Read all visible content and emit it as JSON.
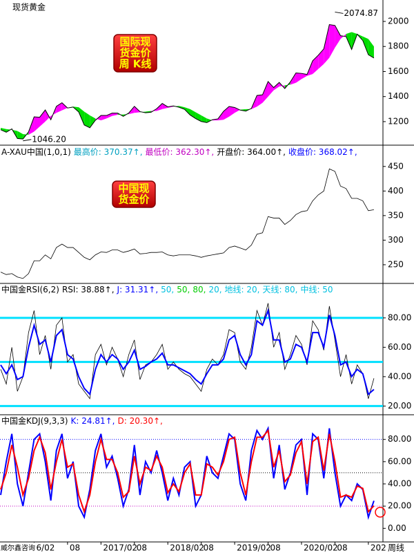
{
  "chart_data": [
    {
      "type": "line",
      "title": "现货黄金",
      "ylim": [
        1023,
        2127
      ],
      "yticks": [
        1200,
        1400,
        1600,
        1800,
        2000
      ],
      "series": [
        {
          "color": "#000000",
          "values": [
            1135,
            1115,
            1142,
            1065,
            1061,
            1118,
            1238,
            1235,
            1293,
            1215,
            1322,
            1351,
            1309,
            1316,
            1277,
            1173,
            1151,
            1211,
            1249,
            1249,
            1268,
            1268,
            1242,
            1269,
            1322,
            1280,
            1271,
            1275,
            1303,
            1345,
            1318,
            1325,
            1315,
            1298,
            1253,
            1224,
            1201,
            1192,
            1215,
            1222,
            1282,
            1321,
            1313,
            1292,
            1284,
            1305,
            1409,
            1414,
            1520,
            1472,
            1513,
            1464,
            1517,
            1589,
            1585,
            1577,
            1686,
            1730,
            1781,
            1975,
            1968,
            1886,
            1879,
            1776,
            1898,
            1847,
            1734,
            1708
          ]
        },
        {
          "color": "#ff00ff",
          "values": [
            1150,
            1140,
            1135,
            1125,
            1100,
            1095,
            1120,
            1160,
            1200,
            1245,
            1270,
            1290,
            1310,
            1320,
            1315,
            1280,
            1250,
            1225,
            1210,
            1225,
            1245,
            1255,
            1257,
            1260,
            1270,
            1275,
            1280,
            1285,
            1285,
            1300,
            1310,
            1320,
            1325,
            1315,
            1300,
            1275,
            1250,
            1225,
            1210,
            1210,
            1215,
            1240,
            1270,
            1295,
            1300,
            1300,
            1320,
            1350,
            1400,
            1450,
            1480,
            1490,
            1495,
            1510,
            1540,
            1565,
            1580,
            1620,
            1660,
            1710,
            1790,
            1860,
            1900,
            1915,
            1900,
            1880,
            1860,
            1800
          ]
        }
      ],
      "band": {
        "above": "#ff00ff",
        "below": "#00dd00"
      },
      "annotations": [
        {
          "label": "2074.87",
          "x": 60,
          "value": 2074.87
        },
        {
          "label": "1046.20",
          "x": 4,
          "value": 1046.2
        }
      ],
      "box": [
        "国际现",
        "货金价",
        "周 K线"
      ]
    },
    {
      "type": "line",
      "header": [
        {
          "text": "A-XAU中国(1,0,1)",
          "color": "#000000"
        },
        {
          "text": "最高价: 370.37↑,",
          "color": "#00a0c0"
        },
        {
          "text": "最低价: 362.30↑,",
          "color": "#c000c0"
        },
        {
          "text": "开盘价: 364.00↑,",
          "color": "#000000"
        },
        {
          "text": "收盘价: 368.02↑,",
          "color": "#0000ff"
        }
      ],
      "ylim": [
        219,
        468
      ],
      "yticks": [
        250,
        300,
        350,
        400,
        450
      ],
      "series": [
        {
          "color": "#000000",
          "values": [
            235,
            230,
            232,
            225,
            222,
            232,
            258,
            258,
            270,
            262,
            285,
            292,
            285,
            285,
            275,
            265,
            260,
            270,
            276,
            275,
            280,
            280,
            275,
            278,
            282,
            272,
            273,
            275,
            275,
            276,
            270,
            268,
            270,
            270,
            270,
            268,
            265,
            268,
            270,
            272,
            274,
            285,
            288,
            284,
            280,
            290,
            312,
            315,
            348,
            345,
            345,
            332,
            340,
            352,
            358,
            360,
            380,
            392,
            400,
            445,
            440,
            410,
            405,
            385,
            385,
            380,
            360,
            362
          ]
        }
      ],
      "box": [
        "中国现",
        "货金价"
      ]
    },
    {
      "type": "line",
      "header": [
        {
          "text": "中国金RSI(6,2)",
          "color": "#000000"
        },
        {
          "text": "RSI: 38.88↑,",
          "color": "#000000"
        },
        {
          "text": "J: 31.31↑,",
          "color": "#0000ff"
        },
        {
          "text": "50,",
          "color": "#00c0e0"
        },
        {
          "text": "50,",
          "color": "#00cc00"
        },
        {
          "text": "80,",
          "color": "#00cc00"
        },
        {
          "text": "20,",
          "color": "#00c0e0"
        },
        {
          "text": "地线: 20,",
          "color": "#00c0e0"
        },
        {
          "text": "天线: 80,",
          "color": "#00c0e0"
        },
        {
          "text": "中线: 50",
          "color": "#00c0e0"
        }
      ],
      "ylim": [
        15,
        95
      ],
      "yticks": [
        {
          "value": 20,
          "label": "20.00"
        },
        {
          "value": 40,
          "label": "40.00"
        },
        {
          "value": 60,
          "label": "60.00"
        },
        {
          "value": 80,
          "label": "80.00"
        }
      ],
      "ref_lines": [
        {
          "value": 80,
          "color": "#00e0ff"
        },
        {
          "value": 50,
          "color": "#00e0ff"
        },
        {
          "value": 20,
          "color": "#00e0ff"
        }
      ],
      "ref_style": "solid",
      "series": [
        {
          "color": "#000000",
          "values": [
            45,
            35,
            60,
            30,
            40,
            70,
            85,
            55,
            68,
            45,
            75,
            80,
            50,
            55,
            35,
            30,
            25,
            55,
            62,
            48,
            60,
            52,
            40,
            55,
            65,
            38,
            48,
            50,
            55,
            62,
            45,
            50,
            45,
            42,
            40,
            35,
            30,
            45,
            52,
            48,
            55,
            72,
            70,
            50,
            45,
            60,
            85,
            75,
            90,
            60,
            70,
            45,
            55,
            68,
            62,
            48,
            78,
            72,
            58,
            88,
            65,
            40,
            55,
            35,
            48,
            42,
            25,
            38.88
          ]
        },
        {
          "color": "#0000ff",
          "values": [
            48,
            42,
            48,
            38,
            40,
            60,
            75,
            62,
            65,
            50,
            68,
            72,
            55,
            52,
            40,
            32,
            28,
            45,
            55,
            50,
            55,
            52,
            45,
            50,
            58,
            45,
            47,
            50,
            52,
            56,
            48,
            48,
            46,
            44,
            42,
            38,
            35,
            42,
            48,
            48,
            52,
            65,
            68,
            55,
            48,
            55,
            78,
            75,
            85,
            65,
            65,
            50,
            52,
            62,
            60,
            50,
            70,
            70,
            60,
            82,
            68,
            48,
            50,
            40,
            45,
            42,
            28,
            31.31
          ]
        }
      ]
    },
    {
      "type": "line",
      "header": [
        {
          "text": "中国金KDJ(9,3,3)",
          "color": "#000000"
        },
        {
          "text": "K: 24.81↑,",
          "color": "#0000ff"
        },
        {
          "text": "D: 20.30↑,",
          "color": "#ff0000"
        }
      ],
      "ylim": [
        -11,
        91
      ],
      "yticks": [
        {
          "value": 0,
          "label": "0.00"
        },
        {
          "value": 20,
          "label": "20.00"
        },
        {
          "value": 40,
          "label": "40.00"
        },
        {
          "value": 60,
          "label": "60.00"
        },
        {
          "value": 80,
          "label": "80.00"
        }
      ],
      "ref_lines": [
        {
          "value": 80,
          "color": "#0000ff"
        },
        {
          "value": 50,
          "color": "#000000"
        },
        {
          "value": 20,
          "color": "#c000c0"
        }
      ],
      "ref_style": "dotted",
      "series": [
        {
          "color": "#0000ff",
          "values": [
            30,
            60,
            85,
            40,
            20,
            50,
            80,
            85,
            60,
            25,
            70,
            85,
            45,
            60,
            20,
            10,
            35,
            70,
            85,
            55,
            65,
            45,
            20,
            35,
            75,
            30,
            60,
            50,
            70,
            50,
            25,
            45,
            30,
            55,
            60,
            20,
            30,
            65,
            50,
            45,
            65,
            85,
            80,
            40,
            25,
            70,
            88,
            80,
            90,
            45,
            75,
            35,
            50,
            75,
            80,
            30,
            85,
            80,
            45,
            90,
            50,
            20,
            30,
            25,
            40,
            35,
            10,
            24.81
          ]
        },
        {
          "color": "#ff0000",
          "values": [
            35,
            50,
            75,
            55,
            30,
            45,
            70,
            82,
            68,
            35,
            60,
            80,
            55,
            58,
            30,
            15,
            30,
            60,
            80,
            62,
            62,
            50,
            28,
            33,
            65,
            40,
            55,
            52,
            65,
            55,
            32,
            40,
            33,
            50,
            58,
            30,
            30,
            58,
            55,
            48,
            60,
            80,
            82,
            50,
            30,
            60,
            82,
            82,
            88,
            55,
            70,
            42,
            48,
            68,
            78,
            40,
            78,
            82,
            52,
            85,
            60,
            28,
            30,
            28,
            38,
            36,
            15,
            20.3
          ]
        }
      ]
    }
  ],
  "x_axis": {
    "xlim": [
      0,
      68
    ],
    "watermark": "威尔鑫咨询",
    "unit": "周线",
    "ticks": [
      {
        "value": 6,
        "label": "6/02"
      },
      {
        "value": 12,
        "label": "08"
      },
      {
        "value": 18,
        "label": "2017/02"
      },
      {
        "value": 24,
        "label": "08"
      },
      {
        "value": 30,
        "label": "2018/02"
      },
      {
        "value": 36,
        "label": "08"
      },
      {
        "value": 42,
        "label": "2019/02"
      },
      {
        "value": 48,
        "label": "08"
      },
      {
        "value": 54,
        "label": "2020/02"
      },
      {
        "value": 60,
        "label": "08"
      },
      {
        "value": 66,
        "label": "202"
      }
    ]
  }
}
